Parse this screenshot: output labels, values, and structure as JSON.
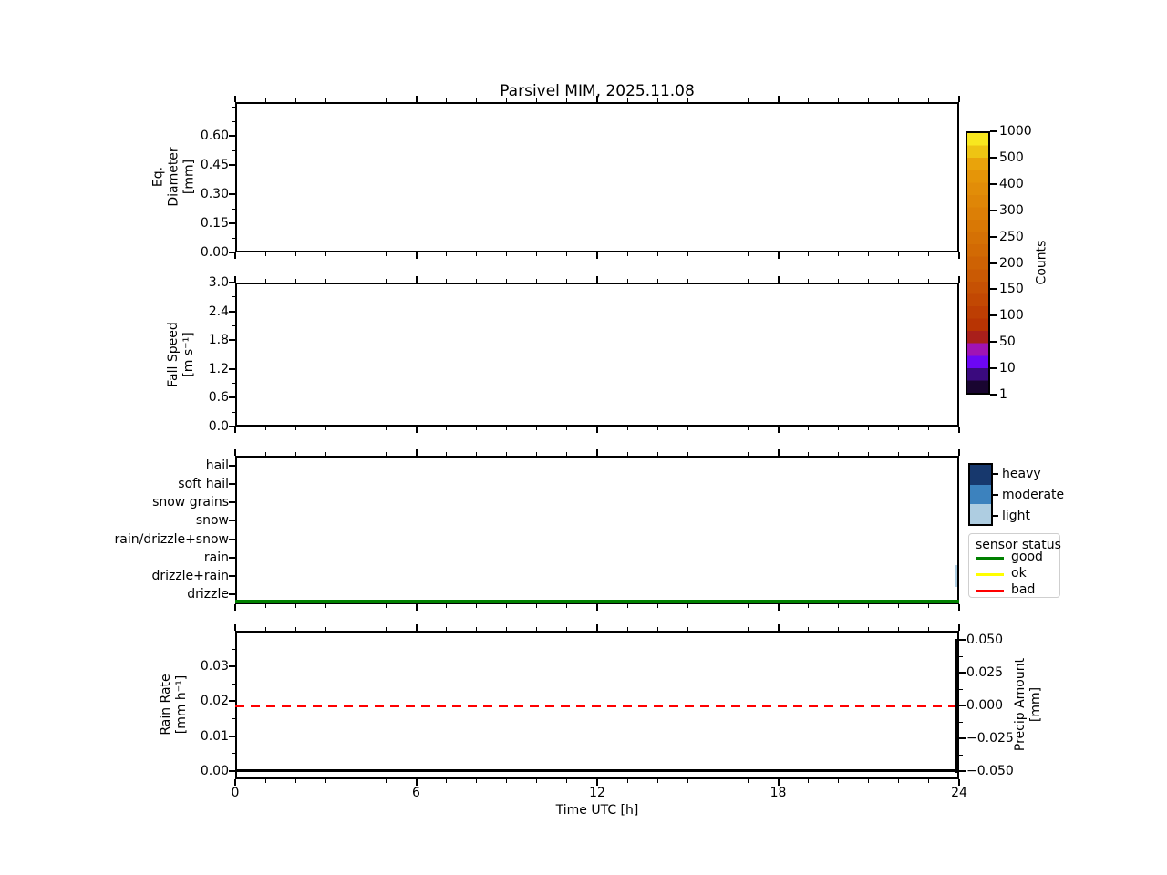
{
  "figure": {
    "title": "Parsivel MIM, 2025.11.08",
    "background": "#ffffff"
  },
  "x_axis": {
    "label": "Time UTC [h]",
    "range_h": [
      0,
      24
    ],
    "major_ticks": [
      "0",
      "6",
      "12",
      "18",
      "24"
    ],
    "minor_step_h": 1
  },
  "chart_data": [
    {
      "id": "eq-diameter",
      "type": "heatmap",
      "ylabel_lines": [
        "Eq.",
        "Diameter",
        "[mm]"
      ],
      "ytick_labels": [
        "0.00",
        "0.15",
        "0.30",
        "0.45",
        "0.60"
      ],
      "ytick_values": [
        0.0,
        0.15,
        0.3,
        0.45,
        0.6
      ],
      "ylim": [
        0.0,
        0.775
      ],
      "values": []
    },
    {
      "id": "fall-speed",
      "type": "heatmap",
      "ylabel_lines": [
        "Fall Speed",
        "[m s⁻¹]"
      ],
      "ytick_labels": [
        "0.0",
        "0.6",
        "1.2",
        "1.8",
        "2.4",
        "3.0"
      ],
      "ytick_values": [
        0.0,
        0.6,
        1.2,
        1.8,
        2.4,
        3.0
      ],
      "ylim": [
        0.0,
        3.0
      ],
      "values": []
    },
    {
      "id": "precip-type",
      "type": "categorical-timeline",
      "categories_top_to_bottom": [
        "hail",
        "soft hail",
        "snow grains",
        "snow",
        "rain/drizzle+snow",
        "rain",
        "drizzle+rain",
        "drizzle"
      ],
      "events": [
        {
          "time_h": 23.9,
          "category": "drizzle+rain",
          "intensity": "light",
          "color": "#aecde1"
        }
      ],
      "sensor_status_line": {
        "value": "good",
        "color": "#008000",
        "coverage_h": [
          0,
          24
        ]
      }
    },
    {
      "id": "rain-rate",
      "type": "line",
      "ylabel_left_lines": [
        "Rain Rate",
        "[mm h⁻¹]"
      ],
      "ytick_labels_left": [
        "0.00",
        "0.01",
        "0.02",
        "0.03"
      ],
      "ytick_values_left": [
        0.0,
        0.01,
        0.02,
        0.03
      ],
      "ylim_left": [
        -0.0024,
        0.0403
      ],
      "ylabel_right_lines": [
        "Precip Amount",
        "[mm]"
      ],
      "ytick_labels_right": [
        "0.050",
        "0.025",
        "0.000",
        "−0.025",
        "−0.050"
      ],
      "ytick_values_right": [
        0.05,
        0.025,
        0.0,
        -0.025,
        -0.05
      ],
      "ylim_right": [
        -0.056,
        0.057
      ],
      "series": [
        {
          "name": "rain rate",
          "color": "#000000",
          "style": "solid",
          "points_h_mmh": [
            [
              0,
              0.0
            ],
            [
              23.85,
              0.0
            ],
            [
              23.9,
              0.038
            ],
            [
              23.95,
              0.0
            ],
            [
              24,
              0.0
            ]
          ]
        },
        {
          "name": "precip amount zero reference",
          "color": "#ff0000",
          "style": "dashed",
          "axis": "right",
          "points_h_mm": [
            [
              0,
              0.0
            ],
            [
              24,
              0.0
            ]
          ]
        }
      ]
    }
  ],
  "colorbar": {
    "label": "Counts",
    "tick_labels_top_to_bottom": [
      "1000",
      "500",
      "400",
      "300",
      "250",
      "200",
      "150",
      "100",
      "50",
      "10",
      "1"
    ],
    "colors_bottom_to_top": [
      "#190530",
      "#3a0a7e",
      "#6c06f4",
      "#a013b4",
      "#a91f1b",
      "#b83403",
      "#bd3e03",
      "#c24803",
      "#c65104",
      "#ca5a04",
      "#ce6204",
      "#d26a04",
      "#d57105",
      "#d97805",
      "#dc7f06",
      "#df8607",
      "#e28d08",
      "#e59508",
      "#e9a30b",
      "#eec413",
      "#f8e71f"
    ]
  },
  "legends": {
    "intensity": {
      "items": [
        {
          "label": "heavy",
          "color": "#17386d"
        },
        {
          "label": "moderate",
          "color": "#3c82be"
        },
        {
          "label": "light",
          "color": "#aecde1"
        }
      ]
    },
    "sensor": {
      "title": "sensor status",
      "items": [
        {
          "label": "good",
          "color": "#008000"
        },
        {
          "label": "ok",
          "color": "#ffff00"
        },
        {
          "label": "bad",
          "color": "#ff0000"
        }
      ]
    }
  }
}
